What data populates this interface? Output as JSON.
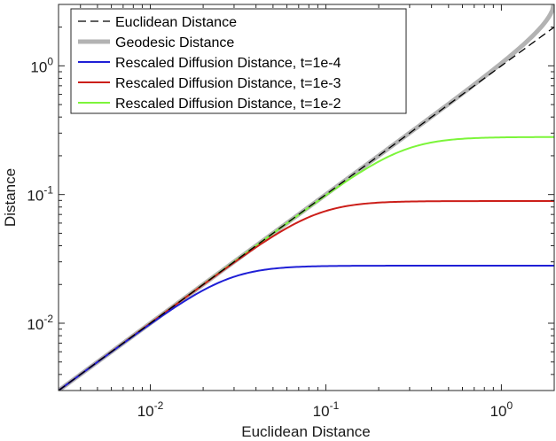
{
  "chart_data": {
    "type": "line",
    "xscale": "log",
    "yscale": "log",
    "xlabel": "Euclidean Distance",
    "ylabel": "Distance",
    "xlim": [
      0.003,
      2.0
    ],
    "ylim": [
      0.003,
      3.0
    ],
    "x_ticks": [
      {
        "value": 0.01,
        "base": "10",
        "exp": "-2"
      },
      {
        "value": 0.1,
        "base": "10",
        "exp": "-1"
      },
      {
        "value": 1,
        "base": "10",
        "exp": "0"
      }
    ],
    "y_ticks": [
      {
        "value": 0.01,
        "base": "10",
        "exp": "-2"
      },
      {
        "value": 0.1,
        "base": "10",
        "exp": "-1"
      },
      {
        "value": 1,
        "base": "10",
        "exp": "0"
      }
    ],
    "legend_position": "top-left",
    "series": [
      {
        "name": "Euclidean Distance",
        "color": "#000000",
        "style": "dashed",
        "kind": "identity"
      },
      {
        "name": "Geodesic Distance",
        "color": "#b3b3b3",
        "style": "thick",
        "kind": "geodesic"
      },
      {
        "name": "Rescaled Diffusion Distance, t=1e-4",
        "color": "#1f1fd6",
        "style": "solid",
        "kind": "saturating",
        "plateau": 0.028
      },
      {
        "name": "Rescaled Diffusion Distance, t=1e-3",
        "color": "#cc1f1a",
        "style": "solid",
        "kind": "saturating",
        "plateau": 0.089
      },
      {
        "name": "Rescaled Diffusion Distance, t=1e-2",
        "color": "#7cf53a",
        "style": "solid",
        "kind": "saturating",
        "plateau": 0.28
      }
    ]
  }
}
